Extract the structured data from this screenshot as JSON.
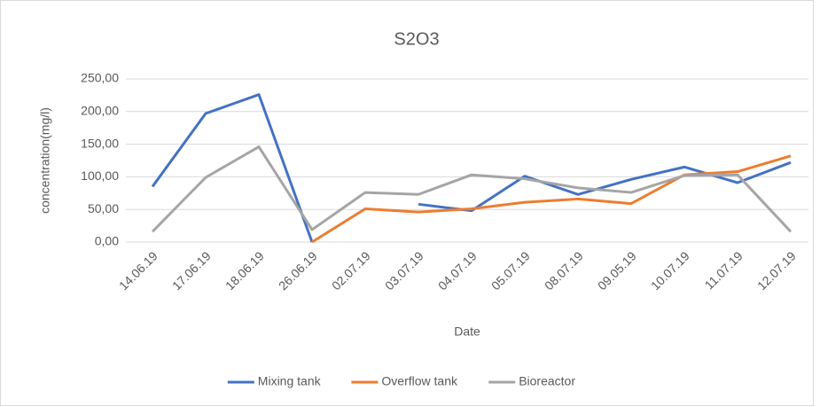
{
  "chart_data": {
    "type": "line",
    "title": "S2O3",
    "x_label": "Date",
    "y_label": "concentration(mg/l)",
    "categories": [
      "14.06.19",
      "17.06.19",
      "18.06.19",
      "26.06.19",
      "02.07.19",
      "03.07.19",
      "04.07.19",
      "05.07.19",
      "08.07.19",
      "09.05.19",
      "10.07.19",
      "11.07.19",
      "12.07.19"
    ],
    "series": [
      {
        "name": "Mixing tank",
        "color": "#4472c4",
        "values": [
          85,
          197,
          226,
          0,
          null,
          58,
          48,
          101,
          73,
          96,
          115,
          91,
          122
        ]
      },
      {
        "name": "Overflow tank",
        "color": "#ed7d31",
        "values": [
          null,
          null,
          null,
          0,
          51,
          46,
          51,
          61,
          66,
          59,
          103,
          108,
          132
        ]
      },
      {
        "name": "Bioreactor",
        "color": "#a5a5a5",
        "values": [
          16,
          99,
          146,
          19,
          76,
          73,
          103,
          97,
          83,
          76,
          102,
          103,
          16
        ]
      }
    ],
    "ylim": [
      0,
      250
    ],
    "yticks": [
      {
        "value": 0,
        "label": "0,00"
      },
      {
        "value": 50,
        "label": "50,00"
      },
      {
        "value": 100,
        "label": "100,00"
      },
      {
        "value": 150,
        "label": "150,00"
      },
      {
        "value": 200,
        "label": "200,00"
      },
      {
        "value": 250,
        "label": "250,00"
      }
    ],
    "grid": true,
    "legend": "bottom"
  }
}
